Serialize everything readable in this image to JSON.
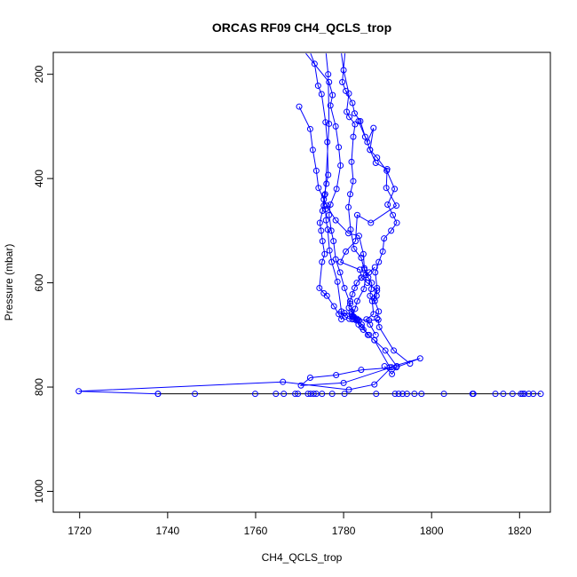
{
  "chart_data": {
    "type": "line",
    "title": "ORCAS RF09 CH4_QCLS_trop",
    "xlabel": "CH4_QCLS_trop",
    "ylabel": "Pressure (mbar)",
    "xlim": [
      1714,
      1827
    ],
    "ylim": [
      1040,
      158
    ],
    "y_reversed": true,
    "xticks": [
      1720,
      1740,
      1760,
      1780,
      1800,
      1820
    ],
    "yticks": [
      200,
      400,
      600,
      800,
      1000
    ],
    "grid": false,
    "colors": {
      "series": "#0000ff",
      "frame": "#000000"
    },
    "series": [
      {
        "x": [
          1776.0,
          1776.5,
          1776.7,
          1775.8,
          1775.5,
          1775.9,
          1776.0,
          1776.4,
          1776.8,
          1777.3,
          1778.6,
          1779.5,
          1780.3,
          1781.3,
          1782.0,
          1783.2,
          1785.8,
          1787.9,
          1788.1,
          1791.4,
          1795.1
        ],
        "y": [
          160,
          200,
          295,
          430,
          452,
          459,
          480,
          498,
          538,
          560,
          598,
          655,
          665,
          669,
          670,
          671,
          672,
          671,
          685,
          730,
          755
        ]
      },
      {
        "x": [
          1772.5,
          1773.4,
          1774.2,
          1775.0,
          1775.9,
          1776.3,
          1776.5,
          1776.1,
          1775.6,
          1775.2,
          1774.6,
          1774.9,
          1775.2,
          1775.7,
          1775.1,
          1774.5,
          1775.5,
          1776.2,
          1777.8,
          1778.9,
          1779.5,
          1780.2,
          1781.8,
          1782.9,
          1784.1,
          1785.5,
          1787.0,
          1789.5,
          1792.1,
          1791.0,
          1789.3
        ],
        "y": [
          160,
          180,
          222,
          238,
          292,
          330,
          393,
          410,
          432,
          462,
          485,
          500,
          520,
          545,
          560,
          610,
          620,
          625,
          645,
          660,
          670,
          658,
          660,
          672,
          680,
          700,
          710,
          730,
          760,
          775,
          760
        ]
      },
      {
        "x": [
          1769.9,
          1772.4,
          1773.0,
          1773.8,
          1774.3,
          1775.5,
          1776.2,
          1778.2,
          1781.1,
          1783.5,
          1784.5,
          1784.7,
          1785.1,
          1784.6,
          1783.1,
          1782.6,
          1781.9,
          1782.5,
          1783.5,
          1783.0,
          1782.1,
          1781.8,
          1781.2,
          1781.5,
          1782.0,
          1782.5,
          1783.0,
          1784.0,
          1785.8,
          1787.1
        ],
        "y": [
          262,
          305,
          345,
          385,
          418,
          440,
          452,
          480,
          505,
          510,
          545,
          572,
          585,
          612,
          635,
          650,
          664,
          670,
          672,
          669,
          665,
          655,
          648,
          635,
          622,
          610,
          600,
          590,
          580,
          570
        ]
      },
      {
        "x": [
          1771.4,
          1776.7,
          1777.5,
          1777.0,
          1778.2,
          1778.9,
          1779.3,
          1778.4,
          1777.0,
          1776.7,
          1777.2,
          1777.7,
          1778.2,
          1779.2,
          1780.2,
          1781.5,
          1782.3,
          1783.4,
          1784.1,
          1784.5,
          1785.8
        ],
        "y": [
          160,
          215,
          240,
          260,
          300,
          340,
          375,
          420,
          450,
          470,
          500,
          520,
          555,
          580,
          610,
          640,
          665,
          680,
          685,
          690,
          700
        ]
      },
      {
        "x": [
          1779.5,
          1780.0,
          1781.2,
          1780.7,
          1781.3,
          1782.6,
          1782.2,
          1781.8,
          1782.2,
          1781.5,
          1781.1,
          1781.6,
          1782.4,
          1784.0,
          1784.7,
          1785.6,
          1786.4,
          1786.3,
          1786.0,
          1787.1,
          1788.0,
          1787.6
        ],
        "y": [
          160,
          192,
          237,
          272,
          282,
          296,
          320,
          368,
          405,
          430,
          455,
          498,
          535,
          552,
          575,
          590,
          600,
          612,
          625,
          635,
          655,
          668
        ]
      },
      {
        "x": [
          1780.3,
          1779.7,
          1780.5,
          1782.0,
          1782.5,
          1783.8,
          1784.9,
          1786.0,
          1787.6,
          1789.8,
          1791.6,
          1790.0,
          1791.2,
          1792.1,
          1790.8,
          1789.2,
          1788.9,
          1788.0,
          1787.2,
          1787.6,
          1786.9
        ],
        "y": [
          160,
          215,
          232,
          255,
          275,
          290,
          320,
          345,
          360,
          385,
          420,
          450,
          470,
          485,
          500,
          515,
          540,
          560,
          580,
          610,
          630
        ]
      },
      {
        "x": [
          1783.4,
          1785.4,
          1786.8,
          1786.0,
          1787.3,
          1789.9,
          1789.7,
          1792.0,
          1786.2,
          1783.1,
          1782.7,
          1780.5,
          1779.3,
          1783.7,
          1784.1,
          1785.4,
          1787.6,
          1787.5,
          1786.5,
          1786.8,
          1785.2,
          1786.0,
          1787.3
        ],
        "y": [
          290,
          330,
          303,
          345,
          370,
          382,
          418,
          452,
          485,
          470,
          520,
          540,
          560,
          575,
          590,
          600,
          615,
          625,
          635,
          660,
          670,
          680,
          700
        ]
      },
      {
        "x": [
          1787.0,
          1790.5,
          1797.4,
          1792.0,
          1784.0,
          1778.3,
          1772.4,
          1770.3,
          1780.0,
          1790.9,
          1787.0,
          1781.2,
          1766.2,
          1719.8,
          1737.8
        ],
        "y": [
          710,
          762,
          745,
          762,
          767,
          777,
          782,
          797,
          792,
          762,
          795,
          805,
          790,
          808,
          813
        ]
      }
    ],
    "bottom_strip": {
      "y": 813,
      "x": [
        1737.8,
        1746.2,
        1759.9,
        1764.6,
        1766.4,
        1769.0,
        1769.6,
        1771.9,
        1772.5,
        1773.2,
        1773.8,
        1775.1,
        1777.4,
        1780.2,
        1787.4,
        1791.7,
        1792.5,
        1793.4,
        1794.4,
        1796.1,
        1797.7,
        1802.8,
        1809.3,
        1809.5,
        1814.5,
        1816.3,
        1818.4,
        1820.3,
        1820.7,
        1821.1,
        1822.1,
        1823.1,
        1824.8
      ]
    }
  }
}
